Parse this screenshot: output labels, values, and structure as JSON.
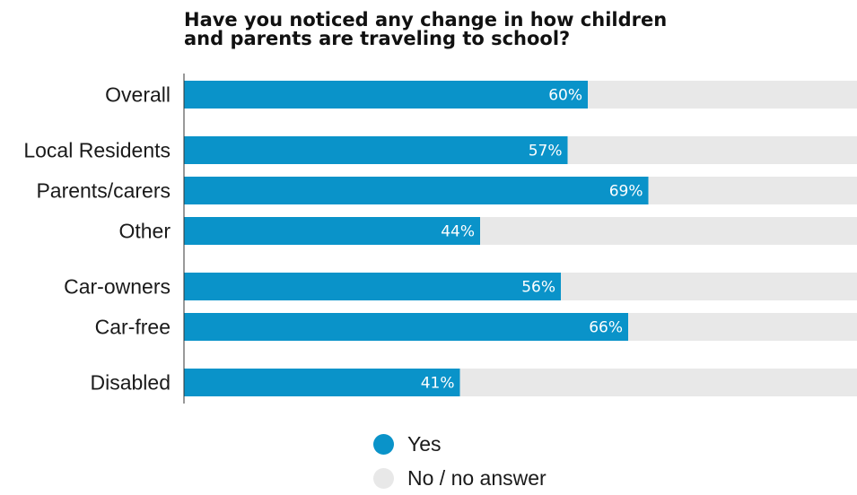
{
  "chart_data": {
    "type": "bar",
    "orientation": "horizontal",
    "stacked": true,
    "title_lines": [
      "Have you noticed any change in how children",
      "and parents are traveling to school?"
    ],
    "categories": [
      "Overall",
      "Local Residents",
      "Parents/carers",
      "Other",
      "Car-owners",
      "Car-free",
      "Disabled"
    ],
    "series": [
      {
        "name": "Yes",
        "values": [
          60,
          57,
          69,
          44,
          56,
          66,
          41
        ],
        "labels": [
          "60%",
          "57%",
          "69%",
          "44%",
          "56%",
          "66%",
          "41%"
        ],
        "color": "#0a93c9"
      },
      {
        "name": "No / no answer",
        "values": [
          40,
          43,
          31,
          56,
          44,
          34,
          59
        ],
        "color": "#e8e8e8"
      }
    ],
    "xlim": [
      0,
      100
    ],
    "grid": false,
    "legend_position": "bottom"
  }
}
